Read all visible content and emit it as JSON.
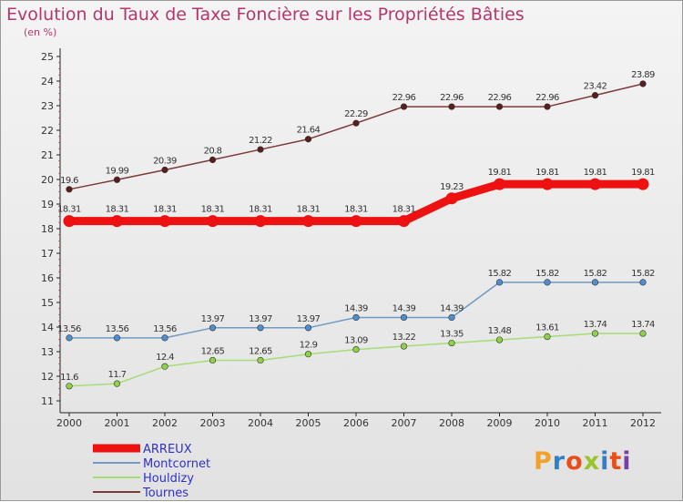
{
  "chart_data": {
    "type": "line",
    "title": "Evolution du Taux de Taxe Foncière sur les Propriétés Bâties",
    "subtitle": "(en %)",
    "x": [
      "2000",
      "2001",
      "2002",
      "2003",
      "2004",
      "2005",
      "2006",
      "2007",
      "2008",
      "2009",
      "2010",
      "2011",
      "2012"
    ],
    "ylim": [
      11,
      25
    ],
    "yticks": [
      11,
      12,
      13,
      14,
      15,
      16,
      17,
      18,
      19,
      20,
      21,
      22,
      23,
      24,
      25
    ],
    "grid": false,
    "legend_position": "bottom-left",
    "series": [
      {
        "name": "ARREUX",
        "color": "#ee1111",
        "marker_fill": "#ee1111",
        "values": [
          18.31,
          18.31,
          18.31,
          18.31,
          18.31,
          18.31,
          18.31,
          18.31,
          19.23,
          19.81,
          19.81,
          19.81,
          19.81
        ],
        "labels": [
          "18.31",
          "18.31",
          "18.31",
          "18.31",
          "18.31",
          "18.31",
          "18.31",
          "18.31",
          "19.23",
          "19.81",
          "19.81",
          "19.81",
          "19.81"
        ]
      },
      {
        "name": "Montcornet",
        "color": "#6f9ac3",
        "marker_fill": "#4f8fd1",
        "values": [
          13.56,
          13.56,
          13.56,
          13.97,
          13.97,
          13.97,
          14.39,
          14.39,
          14.39,
          15.82,
          15.82,
          15.82,
          15.82
        ],
        "labels": [
          "13.56",
          "13.56",
          "13.56",
          "13.97",
          "13.97",
          "13.97",
          "14.39",
          "14.39",
          "14.39",
          "15.82",
          "15.82",
          "15.82",
          "15.82"
        ]
      },
      {
        "name": "Houldizy",
        "color": "#a5dd73",
        "marker_fill": "#8fd24a",
        "values": [
          11.6,
          11.7,
          12.4,
          12.65,
          12.65,
          12.9,
          13.09,
          13.22,
          13.35,
          13.48,
          13.61,
          13.74,
          13.74
        ],
        "labels": [
          "11.6",
          "11.7",
          "12.4",
          "12.65",
          "12.65",
          "12.9",
          "13.09",
          "13.22",
          "13.35",
          "13.48",
          "13.61",
          "13.74",
          "13.74"
        ]
      },
      {
        "name": "Tournes",
        "color": "#7d3a3a",
        "marker_fill": "#5a1e1e",
        "values": [
          19.6,
          19.99,
          20.39,
          20.8,
          21.22,
          21.64,
          22.29,
          22.96,
          22.96,
          22.96,
          22.96,
          23.42,
          23.89
        ],
        "labels": [
          "19.6",
          "19.99",
          "20.39",
          "20.8",
          "21.22",
          "21.64",
          "22.29",
          "22.96",
          "22.96",
          "22.96",
          "22.96",
          "23.42",
          "23.89"
        ]
      }
    ]
  },
  "logo": {
    "text": "Proxiti",
    "colors": [
      "#f2a22a",
      "#2f7fc9",
      "#e84d1a",
      "#9ac52e",
      "#2f7fc9",
      "#e84d1a",
      "#7a3ea8"
    ]
  }
}
